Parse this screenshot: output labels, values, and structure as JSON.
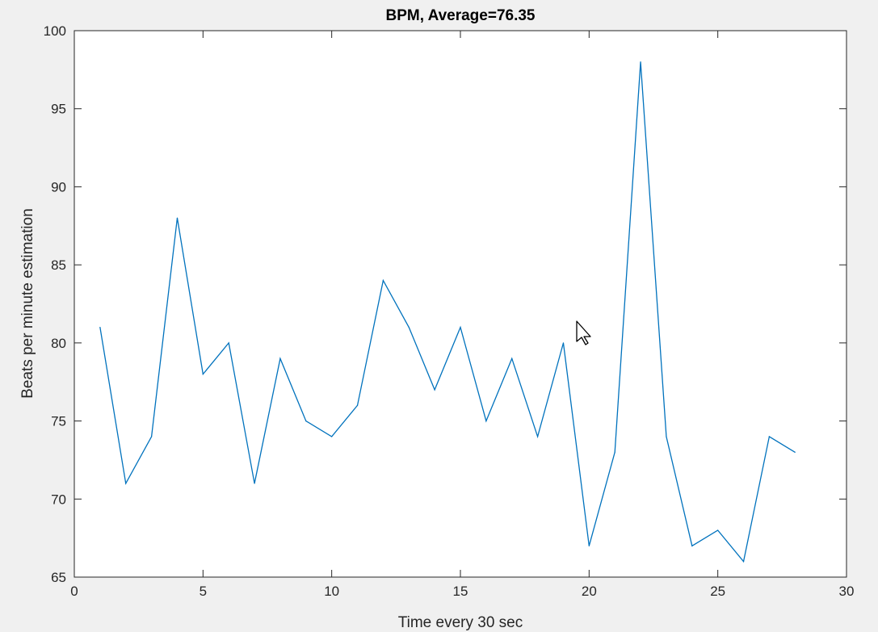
{
  "chart_data": {
    "type": "line",
    "title": "BPM, Average=76.35",
    "xlabel": "Time every 30 sec",
    "ylabel": "Beats per minute estimation",
    "xlim": [
      0,
      30
    ],
    "ylim": [
      65,
      100
    ],
    "xticks": [
      0,
      5,
      10,
      15,
      20,
      25,
      30
    ],
    "yticks": [
      65,
      70,
      75,
      80,
      85,
      90,
      95,
      100
    ],
    "grid": false,
    "legend": "none",
    "series": [
      {
        "color": "#0072bd",
        "x": [
          1,
          2,
          3,
          4,
          5,
          6,
          7,
          8,
          9,
          10,
          11,
          12,
          13,
          14,
          15,
          16,
          17,
          18,
          19,
          20,
          21,
          22,
          23,
          24,
          25,
          26,
          27,
          28
        ],
        "y": [
          81,
          71,
          74,
          88,
          78,
          80,
          71,
          79,
          75,
          74,
          76,
          84,
          81,
          77,
          81,
          75,
          79,
          74,
          80,
          67,
          73,
          98,
          74,
          67,
          68,
          66,
          74,
          73
        ]
      }
    ]
  },
  "cursor": {
    "icon": "mouse-pointer-icon"
  }
}
